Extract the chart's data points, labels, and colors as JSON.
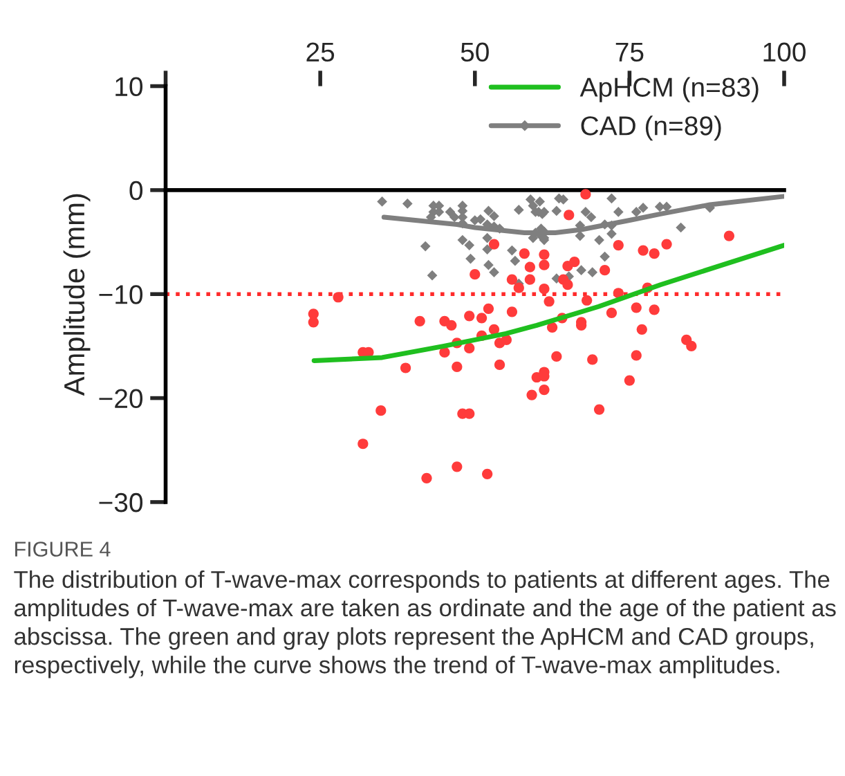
{
  "chart_data": {
    "type": "scatter",
    "ylabel": "Amplitude (mm)",
    "xlim": [
      0,
      100
    ],
    "xticks": [
      {
        "value": 0,
        "label": null
      },
      25,
      50,
      75,
      100
    ],
    "ylim": [
      -30,
      10
    ],
    "yticks": [
      -30,
      -20,
      -10,
      0,
      10
    ],
    "grid": false,
    "legend": "top right",
    "ref_lines": [
      {
        "axis": "y",
        "value": -10,
        "color": "#ff2a2a",
        "line_style": "dotted"
      }
    ],
    "series": [
      {
        "marker": "diamond",
        "color": "#7f7f7f",
        "x": [
          35,
          39.1,
          42,
          43.1,
          43.3,
          44.2,
          43.3,
          44.2,
          42.9,
          46,
          48,
          48,
          48,
          48,
          46.7,
          50,
          50.9,
          52.2,
          53.1,
          52,
          53.1,
          54,
          48,
          49.1,
          52,
          52,
          49.3,
          52.2,
          53.1,
          56,
          56.5,
          57.1,
          59,
          59.4,
          60.3,
          61.2,
          60.7,
          60.7,
          61.2,
          59.4,
          57.1,
          60.5,
          59.8,
          60.9,
          63.6,
          64.3,
          63.2,
          67.9,
          68.8,
          72.1,
          73.2,
          76.1,
          77.2,
          79.9,
          81,
          88,
          67,
          67,
          70.1,
          72.1,
          72.1,
          71,
          71,
          83.3,
          61.2,
          59.8,
          61.2,
          67.2,
          69,
          63.2,
          65.2
        ],
        "values": [
          -1.1,
          -1.3,
          -5.4,
          -8.2,
          -1.5,
          -1.5,
          -2.1,
          -2.1,
          -2.6,
          -2.1,
          -1.5,
          -2.0,
          -2.6,
          -3.2,
          -2.6,
          -2.9,
          -2.8,
          -2.0,
          -2.5,
          -3.3,
          -3.5,
          -3.7,
          -4.8,
          -5.3,
          -4.6,
          -5.7,
          -6.6,
          -7.2,
          -7.9,
          -5.8,
          -6.8,
          -1.9,
          -0.9,
          -1.5,
          -2.1,
          -2.1,
          -3.7,
          -4.4,
          -4.8,
          -4.6,
          -9.0,
          -1.1,
          -2.1,
          -2.3,
          -0.8,
          -0.9,
          -2.0,
          -2.1,
          -2.6,
          -0.8,
          -2.1,
          -2.1,
          -1.7,
          -1.6,
          -1.6,
          -1.7,
          -3.4,
          -4.4,
          -4.8,
          -3.4,
          -4.2,
          -3.3,
          -6.4,
          -3.6,
          -4.0,
          -4.1,
          -4.6,
          -7.7,
          -7.9,
          -8.5,
          -8.3
        ]
      },
      {
        "marker": "circle",
        "color": "#ff3b3b",
        "x": [
          23.9,
          23.9,
          27.9,
          31.9,
          32.8,
          34.8,
          31.9,
          38.8,
          41.1,
          42.2,
          45.1,
          47.1,
          47.1,
          49.1,
          51.1,
          54,
          55.1,
          54,
          48,
          49.1,
          47.1,
          52,
          53.1,
          50,
          58,
          58.9,
          61.2,
          61.2,
          58.9,
          56,
          57.1,
          61.2,
          45.1,
          46.2,
          49.1,
          51.1,
          52.2,
          56,
          53.1,
          62.5,
          67.9,
          65.2,
          73.2,
          77.2,
          79,
          81,
          91.1,
          65,
          66.1,
          71,
          64.3,
          65,
          62,
          68.1,
          73.2,
          77.9,
          72.1,
          76.1,
          79,
          64.1,
          67.2,
          67.2,
          77,
          84.2,
          85,
          63.2,
          69,
          76.1,
          61.2,
          60,
          61.2,
          61.2,
          59.2,
          75,
          70.1
        ],
        "values": [
          -11.9,
          -12.7,
          -10.3,
          -15.6,
          -15.6,
          -21.2,
          -24.4,
          -17.1,
          -12.6,
          -27.7,
          -15.6,
          -14.7,
          -17.0,
          -15.2,
          -14.0,
          -14.7,
          -14.4,
          -16.8,
          -21.5,
          -21.5,
          -26.6,
          -27.3,
          -5.2,
          -8.1,
          -6.1,
          -7.4,
          -6.2,
          -7.2,
          -8.6,
          -8.6,
          -9.4,
          -9.5,
          -12.6,
          -13.0,
          -12.1,
          -12.3,
          -11.4,
          -11.7,
          -13.4,
          -13.2,
          -0.4,
          -2.4,
          -5.3,
          -5.8,
          -6.1,
          -5.2,
          -4.4,
          -7.3,
          -6.9,
          -7.7,
          -8.6,
          -9.1,
          -10.7,
          -10.6,
          -9.9,
          -9.4,
          -11.8,
          -11.3,
          -11.5,
          -12.3,
          -12.7,
          -13.0,
          -13.4,
          -14.4,
          -15.0,
          -16.0,
          -16.3,
          -15.9,
          -17.5,
          -18.0,
          -17.9,
          -19.2,
          -19.7,
          -18.3,
          -21.1
        ]
      },
      {
        "type": "line",
        "name": "ApHCM (n=83)",
        "color": "#1fbf1f",
        "marker": "none",
        "x": [
          24,
          35,
          45,
          55,
          60,
          70,
          80,
          90,
          100
        ],
        "values": [
          -16.4,
          -16.1,
          -15.0,
          -13.8,
          -13.0,
          -11.2,
          -9.1,
          -7.2,
          -5.3
        ]
      },
      {
        "type": "line",
        "name": "CAD (n=89)",
        "color": "#7f7f7f",
        "x": [
          35.3,
          47.1,
          50,
          58,
          63,
          67.2,
          75,
          80,
          88,
          100
        ],
        "values": [
          -2.6,
          -3.3,
          -3.6,
          -4.1,
          -4.1,
          -3.8,
          -2.9,
          -2.3,
          -1.4,
          -0.6
        ]
      }
    ],
    "annotations": [
      "FIGURE 4",
      "The distribution of T-wave-max corresponds to patients at different ages. The amplitudes of T-wave-max are taken as ordinate and the age of the patient as abscissa. The green and gray plots represent the ApHCM and CAD groups, respectively, while the curve shows the trend of T-wave-max amplitudes."
    ]
  }
}
